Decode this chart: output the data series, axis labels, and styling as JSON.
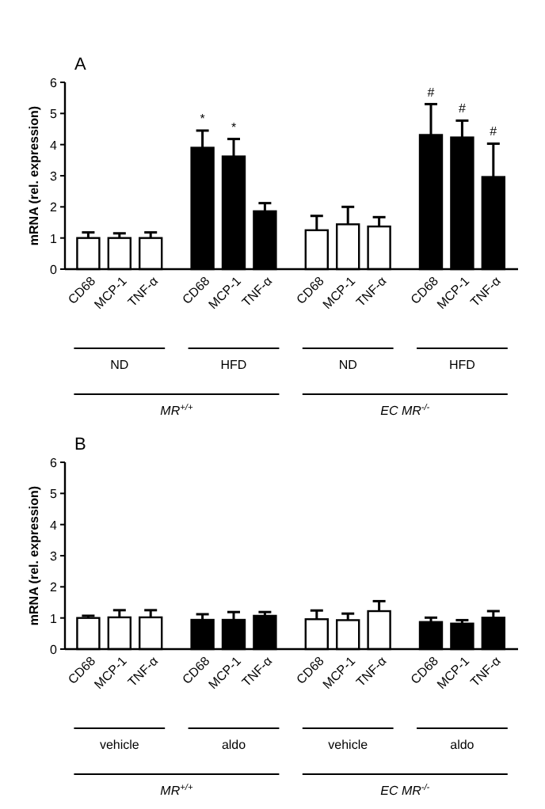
{
  "chart_data": [
    {
      "type": "bar",
      "title": "A",
      "ylabel": "mRNA (rel. expression)",
      "categories": [
        "CD68",
        "MCP-1",
        "TNF-α",
        "CD68",
        "MCP-1",
        "TNF-α",
        "CD68",
        "MCP-1",
        "TNF-α",
        "CD68",
        "MCP-1",
        "TNF-α"
      ],
      "values": [
        1.0,
        1.0,
        1.0,
        3.9,
        3.62,
        1.86,
        1.25,
        1.44,
        1.37,
        4.31,
        4.23,
        2.96
      ],
      "colors": [
        "#ffffff",
        "#ffffff",
        "#ffffff",
        "#000000",
        "#000000",
        "#000000",
        "#ffffff",
        "#ffffff",
        "#ffffff",
        "#000000",
        "#000000",
        "#000000"
      ],
      "errors": [
        [
          1.0,
          1.18
        ],
        [
          1.0,
          1.15
        ],
        [
          1.0,
          1.18
        ],
        [
          3.9,
          4.45
        ],
        [
          3.62,
          4.18
        ],
        [
          1.86,
          2.12
        ],
        [
          1.25,
          1.71
        ],
        [
          1.44,
          2.0
        ],
        [
          1.37,
          1.67
        ],
        [
          4.31,
          5.3
        ],
        [
          4.23,
          4.77
        ],
        [
          2.96,
          4.03
        ]
      ],
      "value_labels": [
        null,
        null,
        null,
        "*",
        "*",
        null,
        null,
        null,
        null,
        "#",
        "#",
        "#"
      ],
      "ylim": [
        0,
        6
      ],
      "yticks": [
        0,
        1,
        2,
        3,
        4,
        5,
        6
      ],
      "grid": false,
      "annotations": [
        "ND",
        "HFD",
        "ND",
        "HFD",
        "MR$^{+/+}$",
        "EC MR$^{-/-}$"
      ]
    },
    {
      "type": "bar",
      "title": "B",
      "ylabel": "mRNA (rel. expression)",
      "categories": [
        "CD68",
        "MCP-1",
        "TNF-α",
        "CD68",
        "MCP-1",
        "TNF-α",
        "CD68",
        "MCP-1",
        "TNF-α",
        "CD68",
        "MCP-1",
        "TNF-α"
      ],
      "values": [
        1.0,
        1.02,
        1.02,
        0.94,
        0.94,
        1.07,
        0.96,
        0.93,
        1.22,
        0.87,
        0.82,
        1.01
      ],
      "colors": [
        "#ffffff",
        "#ffffff",
        "#ffffff",
        "#000000",
        "#000000",
        "#000000",
        "#ffffff",
        "#ffffff",
        "#ffffff",
        "#000000",
        "#000000",
        "#000000"
      ],
      "errors": [
        [
          1.0,
          1.07
        ],
        [
          1.02,
          1.25
        ],
        [
          1.02,
          1.25
        ],
        [
          0.94,
          1.12
        ],
        [
          0.94,
          1.19
        ],
        [
          1.07,
          1.19
        ],
        [
          0.96,
          1.24
        ],
        [
          0.93,
          1.14
        ],
        [
          1.22,
          1.54
        ],
        [
          0.87,
          1.01
        ],
        [
          0.82,
          0.93
        ],
        [
          1.01,
          1.22
        ]
      ],
      "ylim": [
        0,
        6
      ],
      "yticks": [
        0,
        1,
        2,
        3,
        4,
        5,
        6
      ],
      "grid": false,
      "annotations": [
        "vehicle",
        "aldo",
        "vehicle",
        "aldo",
        "MR$^{+/+}$",
        "EC MR$^{-/-}$"
      ]
    }
  ]
}
